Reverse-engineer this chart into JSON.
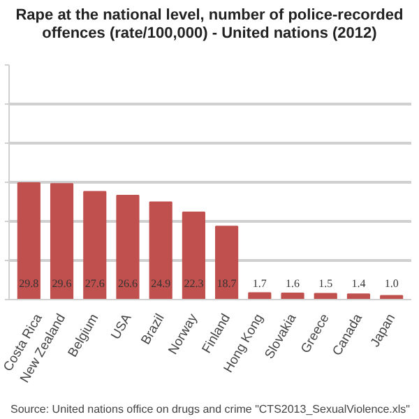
{
  "chart_data": {
    "type": "bar",
    "title": "Rape at the national level, number of police-recorded offences (rate/100,000) - United nations (2012)",
    "categories": [
      "Costa Rica",
      "New Zealand",
      "Belgium",
      "USA",
      "Brazil",
      "Norway",
      "Finland",
      "Hong Kong",
      "Slovakia",
      "Greece",
      "Canada",
      "Japan"
    ],
    "values": [
      29.8,
      29.6,
      27.6,
      26.6,
      24.9,
      22.3,
      18.7,
      1.7,
      1.6,
      1.5,
      1.4,
      1.0
    ],
    "value_labels": [
      "29.8",
      "29.6",
      "27.6",
      "26.6",
      "24.9",
      "22.3",
      "18.7",
      "1.7",
      "1.6",
      "1.5",
      "1.4",
      "1.0"
    ],
    "color": "#c0504d",
    "grid": "y",
    "tick_labels": "x",
    "ylim": [
      0,
      60
    ],
    "yticks": [
      {
        "value": 0,
        "label": null
      },
      {
        "value": 10,
        "label": null
      },
      {
        "value": 20,
        "label": null
      },
      {
        "value": 30,
        "label": null
      },
      {
        "value": 40,
        "label": null
      },
      {
        "value": 50,
        "label": null
      },
      {
        "value": 60,
        "label": null
      }
    ],
    "annotations": [
      "Source: United nations office on drugs and crime \"CTS2013_SexualViolence.xls\""
    ]
  }
}
